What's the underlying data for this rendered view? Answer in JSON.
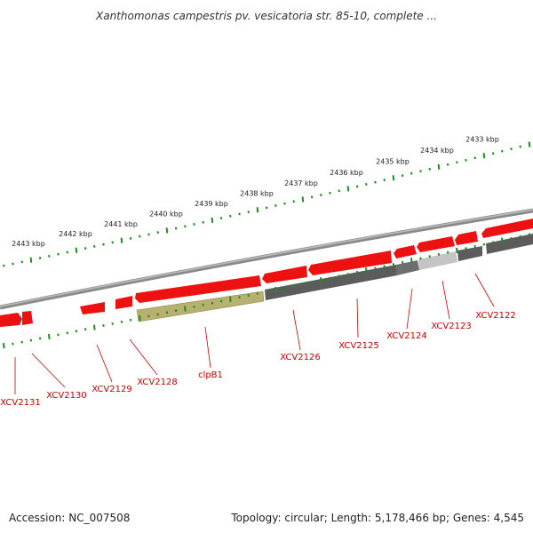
{
  "title": "Xanthomonas campestris pv. vesicatoria str. 85-10, complete ...",
  "footer": {
    "accession": "Accession: NC_007508",
    "summary": "Topology: circular; Length: 5,178,466 bp; Genes: 4,545"
  },
  "colors": {
    "backbone": "#8a8a8a",
    "forward_gene": "#ee1111",
    "reverse_gene": "#5c5c5c",
    "reverse_gene_light": "#c4c4c4",
    "clpB1": "#b8b070",
    "ticks": "#1f8f1f",
    "label_line": "#cc0000"
  },
  "scale_labels": [
    "2443 kbp",
    "2442 kbp",
    "2441 kbp",
    "2440 kbp",
    "2439 kbp",
    "2438 kbp",
    "2437 kbp",
    "2436 kbp",
    "2435 kbp",
    "2434 kbp",
    "2433 kbp"
  ],
  "genes": [
    {
      "name": "XCV2131",
      "strand": "forward"
    },
    {
      "name": "XCV2130",
      "strand": "forward"
    },
    {
      "name": "XCV2129",
      "strand": "forward"
    },
    {
      "name": "XCV2128",
      "strand": "forward"
    },
    {
      "name": "clpB1",
      "strand": "reverse"
    },
    {
      "name": "XCV2126",
      "strand": "reverse"
    },
    {
      "name": "XCV2125",
      "strand": "reverse"
    },
    {
      "name": "XCV2124",
      "strand": "reverse"
    },
    {
      "name": "XCV2123",
      "strand": "reverse"
    },
    {
      "name": "XCV2122",
      "strand": "reverse"
    }
  ]
}
